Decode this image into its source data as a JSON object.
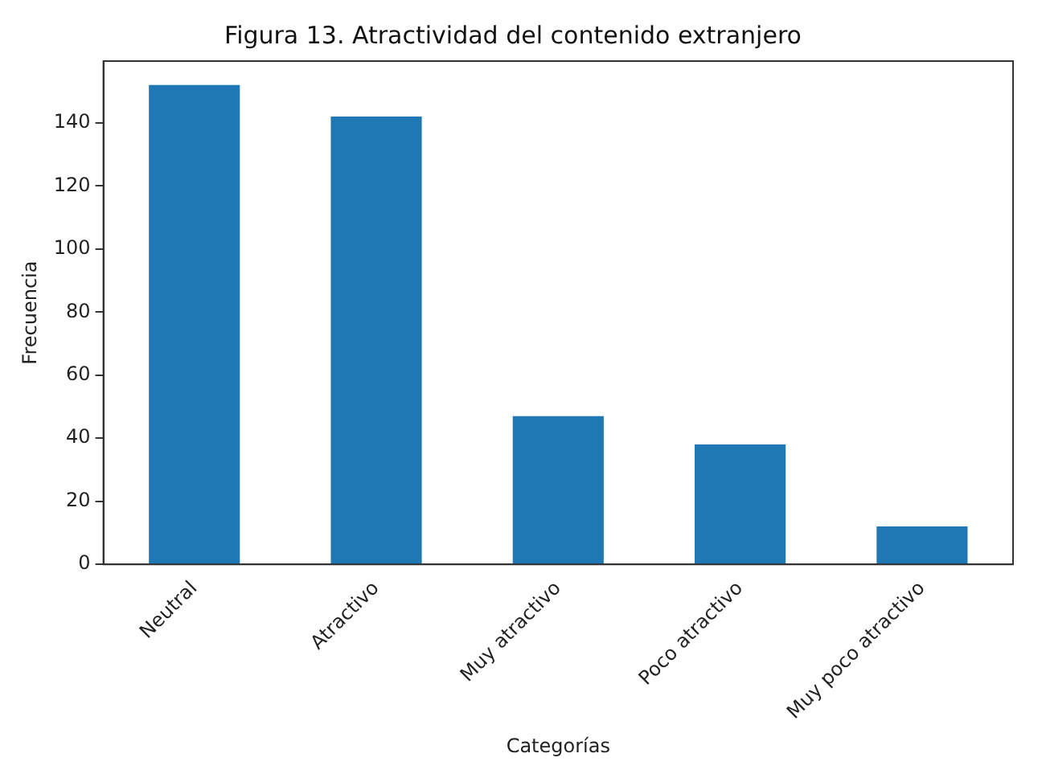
{
  "chart_data": {
    "type": "bar",
    "title": "Figura 13. Atractividad del contenido extranjero",
    "xlabel": "Categorías",
    "ylabel": "Frecuencia",
    "categories": [
      "Neutral",
      "Atractivo",
      "Muy atractivo",
      "Poco atractivo",
      "Muy poco atractivo"
    ],
    "values": [
      152,
      142,
      47,
      38,
      12
    ],
    "color": "#1f77b4",
    "ylim": [
      0,
      159.6
    ],
    "yticks": [
      0,
      20,
      40,
      60,
      80,
      100,
      120,
      140
    ],
    "grid": false,
    "legend": false
  }
}
